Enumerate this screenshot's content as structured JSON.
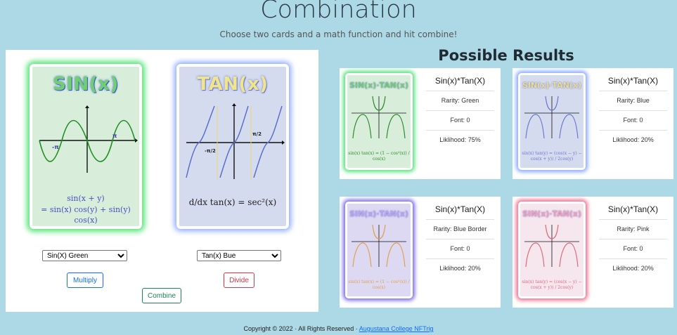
{
  "header": {
    "title": "Combination",
    "subtitle": "Choose two cards and a math function and hit combine!"
  },
  "cards": {
    "left": {
      "name": "SIN(x)",
      "formula_line1": "sin(x + y)",
      "formula_line2": "= sin(x) cos(y) + sin(y) cos(x)",
      "axis_label_neg": "-π",
      "axis_label_pos": "π"
    },
    "right": {
      "name": "TAN(x)",
      "formula": "d/dx tan(x) = sec²(x)",
      "axis_label_neg": "-π/2",
      "axis_label_pos": "π/2"
    }
  },
  "selects": {
    "left_value": "Sin(X) Green",
    "right_value": "Tan(x) Bue"
  },
  "buttons": {
    "multiply": "Multiply",
    "divide": "Divide",
    "combine": "Combine"
  },
  "results": {
    "title": "Possible Results",
    "items": [
      {
        "card_name": "SIN(x)·TAN(x)",
        "name": "Sin(x)*Tan(X)",
        "rarity": "Rarity: Green",
        "font": "Font: 0",
        "likelihood": "Liklihood: 75%",
        "formula": "sin(x) tan(x) = (1 − cos²(x)) / cos(x)",
        "bg": "#d8eedb",
        "glow": "#58e37a",
        "curve": "#2e8b2e",
        "namecolor": "#6ed06e"
      },
      {
        "card_name": "SIN(x)·TAN(x)",
        "name": "Sin(x)*Tan(X)",
        "rarity": "Rarity: Blue",
        "font": "Font: 0",
        "likelihood": "Liklihood: 20%",
        "formula": "sin(x) tan(y) = (cos(x − y) − cos(x + y)) / 2cos(y)",
        "bg": "#d4dbef",
        "glow": "#8aa8ff",
        "curve": "#6a7ad0",
        "namecolor": "#e9de86"
      },
      {
        "card_name": "SIN(x)·TAN(x)",
        "name": "Sin(x)*Tan(X)",
        "rarity": "Rarity: Blue Border",
        "font": "Font: 0",
        "likelihood": "Liklihood: 20%",
        "formula": "sin(x) tan(x) = (1 − cos²(x)) / cos(x)",
        "bg": "#ddd9f2",
        "glow": "#7a6ae8",
        "curve": "#e0a050",
        "namecolor": "#b6a6ef"
      },
      {
        "card_name": "SIN(x)·TAN(x)",
        "name": "Sin(x)*Tan(X)",
        "rarity": "Rarity: Pink",
        "font": "Font: 0",
        "likelihood": "Liklihood: 20%",
        "formula": "sin(x) tan(y) = (cos(x − y) − cos(x + y)) / 2cos(y)",
        "bg": "#f6e6ee",
        "glow": "#f07090",
        "curve": "#e06a78",
        "namecolor": "#f2a0b4"
      }
    ]
  },
  "footer": {
    "copyright": "Copyright © 2022 · All Rights Reserved · ",
    "link": "Augustana College NFTrig"
  },
  "colors": {
    "background": "#add8e6",
    "multiply_btn": "#0d6efd",
    "divide_btn": "#dc3545",
    "combine_btn": "#198754"
  }
}
